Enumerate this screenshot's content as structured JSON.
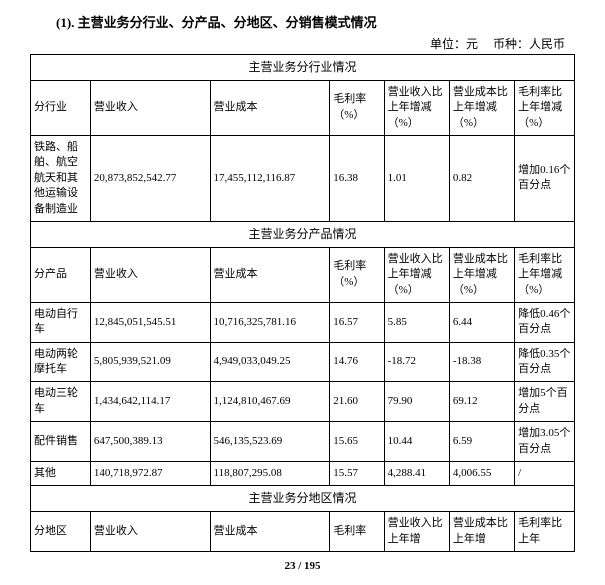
{
  "title": "(1). 主营业务分行业、分产品、分地区、分销售模式情况",
  "unit_label": "单位：元　 币种：人民币",
  "sections": {
    "industry": {
      "header": "主营业务分行业情况",
      "columns": [
        "分行业",
        "营业收入",
        "营业成本",
        "毛利率（%）",
        "营业收入比上年增减（%）",
        "营业成本比上年增减（%）",
        "毛利率比上年增减（%）"
      ],
      "rows": [
        [
          "铁路、船舶、航空航天和其他运输设备制造业",
          "20,873,852,542.77",
          "17,455,112,116.87",
          "16.38",
          "1.01",
          "0.82",
          "增加0.16个百分点"
        ]
      ]
    },
    "product": {
      "header": "主营业务分产品情况",
      "columns": [
        "分产品",
        "营业收入",
        "营业成本",
        "毛利率（%）",
        "营业收入比上年增减（%）",
        "营业成本比上年增减（%）",
        "毛利率比上年增减（%）"
      ],
      "rows": [
        [
          "电动自行车",
          "12,845,051,545.51",
          "10,716,325,781.16",
          "16.57",
          "5.85",
          "6.44",
          "降低0.46个百分点"
        ],
        [
          "电动两轮摩托车",
          "5,805,939,521.09",
          "4,949,033,049.25",
          "14.76",
          "-18.72",
          "-18.38",
          "降低0.35个百分点"
        ],
        [
          "电动三轮车",
          "1,434,642,114.17",
          "1,124,810,467.69",
          "21.60",
          "79.90",
          "69.12",
          "增加5个百分点"
        ],
        [
          "配件销售",
          "647,500,389.13",
          "546,135,523.69",
          "15.65",
          "10.44",
          "6.59",
          "增加3.05个百分点"
        ],
        [
          "其他",
          "140,718,972.87",
          "118,807,295.08",
          "15.57",
          "4,288.41",
          "4,006.55",
          "/"
        ]
      ]
    },
    "region": {
      "header": "主营业务分地区情况",
      "columns": [
        "分地区",
        "营业收入",
        "营业成本",
        "毛利率",
        "营业收入比上年增",
        "营业成本比上年增",
        "毛利率比上年"
      ]
    }
  },
  "page_footer": "23 / 195"
}
